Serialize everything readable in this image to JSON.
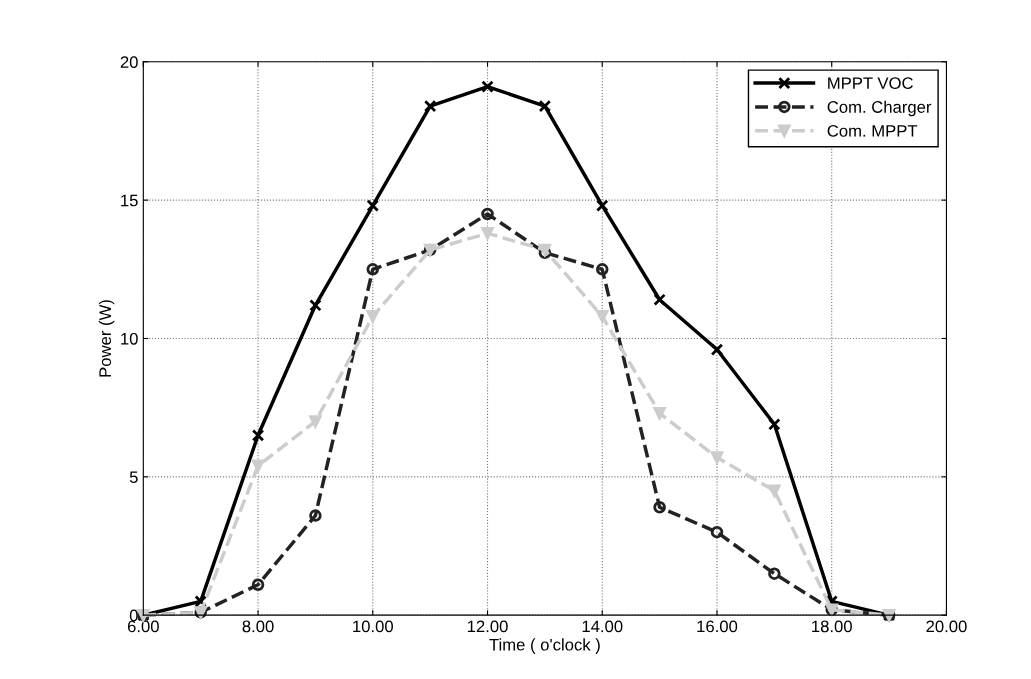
{
  "chart_data": {
    "type": "line",
    "xlabel": "Time ( o'clock )",
    "ylabel": "Power (W)",
    "x": [
      6,
      7,
      8,
      9,
      10,
      11,
      12,
      13,
      14,
      15,
      16,
      17,
      18,
      19
    ],
    "series": [
      {
        "name": "MPPT VOC",
        "color": "#000000",
        "marker": "cross",
        "line_style": "solid",
        "values": [
          0,
          0.5,
          6.5,
          11.2,
          14.8,
          18.4,
          19.1,
          18.4,
          14.8,
          11.4,
          9.6,
          6.9,
          0.5,
          0
        ]
      },
      {
        "name": "Com. Charger",
        "color": "#222222",
        "marker": "circle",
        "line_style": "dashed",
        "values": [
          0,
          0.1,
          1.1,
          3.6,
          12.5,
          13.2,
          14.5,
          13.1,
          12.5,
          3.9,
          3.0,
          1.5,
          0.2,
          0
        ]
      },
      {
        "name": "Com. MPPT",
        "color": "#cccccc",
        "marker": "triangle",
        "line_style": "dashed",
        "values": [
          0,
          0.1,
          5.4,
          7.0,
          10.8,
          13.2,
          13.8,
          13.2,
          10.8,
          7.3,
          5.7,
          4.5,
          0.2,
          0
        ]
      }
    ],
    "xlim": [
      6,
      20
    ],
    "ylim": [
      0,
      20
    ],
    "xticks": [
      {
        "value": 6,
        "label": "6.00"
      },
      {
        "value": 8,
        "label": "8.00"
      },
      {
        "value": 10,
        "label": "10.00"
      },
      {
        "value": 12,
        "label": "12.00"
      },
      {
        "value": 14,
        "label": "14.00"
      },
      {
        "value": 16,
        "label": "16.00"
      },
      {
        "value": 18,
        "label": "18.00"
      },
      {
        "value": 20,
        "label": "20.00"
      }
    ],
    "yticks": [
      0,
      5,
      10,
      15,
      20
    ],
    "grid": true,
    "legend": "top right"
  }
}
